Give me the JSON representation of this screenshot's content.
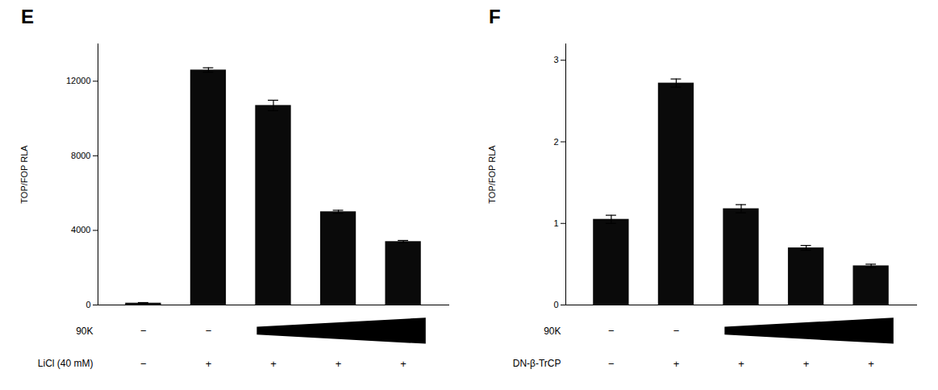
{
  "chart_data": [
    {
      "type": "bar",
      "title": "E",
      "categories": [
        null,
        null,
        null,
        null,
        null
      ],
      "values": [
        100,
        12600,
        10700,
        5000,
        3400
      ],
      "errors": [
        30,
        120,
        280,
        80,
        60
      ],
      "color": "#0a0a0a",
      "ylim": [
        0,
        14000
      ],
      "yticks": [
        0,
        4000,
        8000,
        12000
      ],
      "ylabel": "TOP/FOP RLA",
      "tick_labels": "y",
      "annotations": [
        {
          "label": "90K",
          "signs": [
            "−",
            "−"
          ]
        },
        {
          "label": "LiCl (40 mM)",
          "signs": [
            "−",
            "+",
            "+",
            "+",
            "+"
          ]
        }
      ]
    },
    {
      "type": "bar",
      "title": "F",
      "categories": [
        null,
        null,
        null,
        null,
        null
      ],
      "values": [
        1.05,
        2.72,
        1.18,
        0.7,
        0.48
      ],
      "errors": [
        0.05,
        0.05,
        0.05,
        0.03,
        0.02
      ],
      "color": "#0a0a0a",
      "ylim": [
        0,
        3.2
      ],
      "yticks": [
        0,
        1,
        2,
        3
      ],
      "ylabel": "TOP/FOP RLA",
      "tick_labels": "y",
      "annotations": [
        {
          "label": "90K",
          "signs": [
            "−",
            "−"
          ]
        },
        {
          "label": "DN-β-TrCP",
          "signs": [
            "−",
            "+",
            "+",
            "+",
            "+"
          ]
        }
      ]
    }
  ]
}
